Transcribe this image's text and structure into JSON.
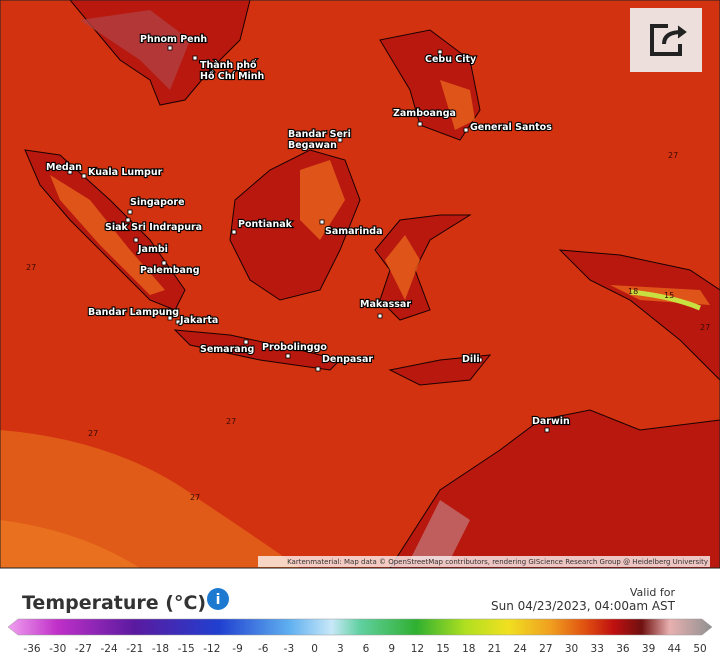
{
  "map": {
    "cities": [
      {
        "lines": [
          "Phnom Penh"
        ]
      },
      {
        "lines": [
          "Thành phố",
          "Hồ Chí Minh"
        ]
      },
      {
        "lines": [
          "Cebu City"
        ]
      },
      {
        "lines": [
          "Zamboanga"
        ]
      },
      {
        "lines": [
          "General Santos"
        ]
      },
      {
        "lines": [
          "Bandar Seri",
          "Begawan"
        ]
      },
      {
        "lines": [
          "Medan"
        ]
      },
      {
        "lines": [
          "Kuala Lumpur"
        ]
      },
      {
        "lines": [
          "Singapore"
        ]
      },
      {
        "lines": [
          "Siak Sri Indrapura"
        ]
      },
      {
        "lines": [
          "Jambi"
        ]
      },
      {
        "lines": [
          "Palembang"
        ]
      },
      {
        "lines": [
          "Pontianak"
        ]
      },
      {
        "lines": [
          "Samarinda"
        ]
      },
      {
        "lines": [
          "Makassar"
        ]
      },
      {
        "lines": [
          "Bandar Lampung"
        ]
      },
      {
        "lines": [
          "Jakarta"
        ]
      },
      {
        "lines": [
          "Semarang"
        ]
      },
      {
        "lines": [
          "Probolinggo"
        ]
      },
      {
        "lines": [
          "Denpasar"
        ]
      },
      {
        "lines": [
          "Dili"
        ]
      },
      {
        "lines": [
          "Darwin"
        ]
      }
    ],
    "contour_labels": [
      "27",
      "27",
      "27",
      "27",
      "27",
      "27",
      "18",
      "15"
    ],
    "attribution": "Kartenmaterial: Map data © OpenStreetMap contributors, rendering GIScience Research Group @ Heidelberg University"
  },
  "legend": {
    "title": "Temperature (°C)",
    "valid_label": "Valid for",
    "valid_time": "Sun 04/23/2023, 04:00am AST",
    "ticks": [
      -36,
      -30,
      -27,
      -24,
      -21,
      -18,
      -15,
      -12,
      -9,
      -6,
      -3,
      0,
      3,
      6,
      9,
      12,
      15,
      18,
      21,
      24,
      27,
      30,
      33,
      36,
      39,
      44,
      50
    ]
  }
}
